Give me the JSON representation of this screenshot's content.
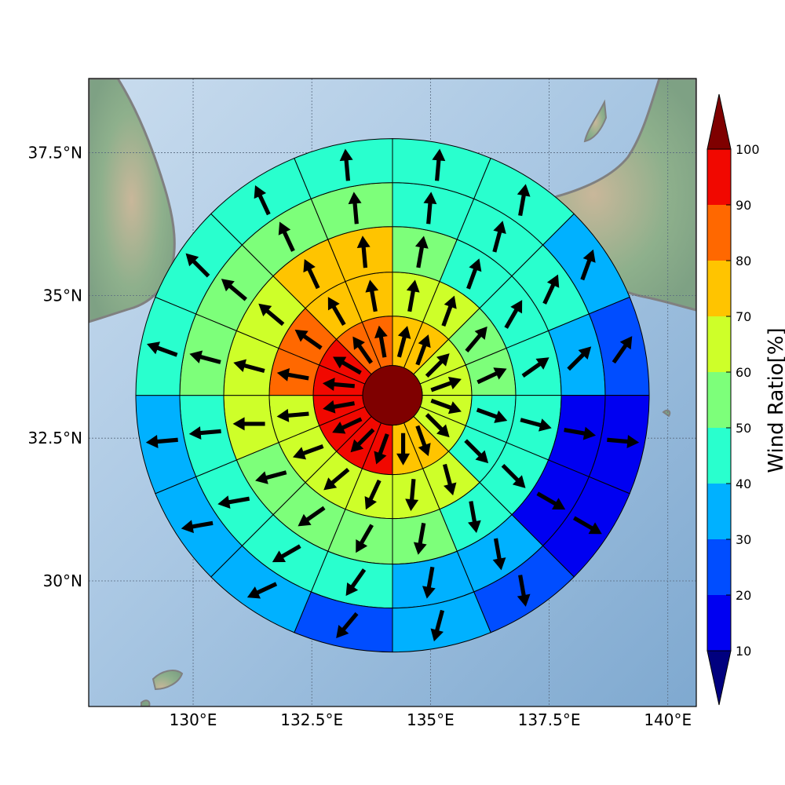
{
  "map": {
    "lon_range": [
      127.8,
      140.6
    ],
    "lat_range": [
      27.8,
      38.8
    ],
    "lon_ticks": [
      {
        "value": 130,
        "label": "130°E"
      },
      {
        "value": 132.5,
        "label": "132.5°E"
      },
      {
        "value": 135,
        "label": "135°E"
      },
      {
        "value": 137.5,
        "label": "137.5°E"
      },
      {
        "value": 140,
        "label": "140°E"
      }
    ],
    "lat_ticks": [
      {
        "value": 30,
        "label": "30°N"
      },
      {
        "value": 32.5,
        "label": "32.5°N"
      },
      {
        "value": 35,
        "label": "35°N"
      },
      {
        "value": 37.5,
        "label": "37.5°N"
      }
    ],
    "gridlines": true,
    "coastline_color": "#808080"
  },
  "chart_data": {
    "type": "heatmap",
    "layout": "polar-sector",
    "center": {
      "lon": 134.2,
      "lat": 33.25
    },
    "sectors_per_ring": 16,
    "rings": [
      {
        "ring": 1,
        "ratios": [
          73,
          73,
          65,
          65,
          65,
          65,
          75,
          75,
          95,
          95,
          95,
          95,
          95,
          95,
          85,
          85
        ]
      },
      {
        "ring": 2,
        "ratios": [
          65,
          65,
          55,
          55,
          45,
          45,
          65,
          65,
          65,
          65,
          65,
          65,
          85,
          85,
          75,
          75
        ]
      },
      {
        "ring": 3,
        "ratios": [
          55,
          45,
          45,
          45,
          45,
          45,
          45,
          55,
          55,
          55,
          55,
          65,
          65,
          65,
          75,
          75
        ]
      },
      {
        "ring": 4,
        "ratios": [
          45,
          45,
          45,
          35,
          15,
          15,
          35,
          35,
          45,
          45,
          45,
          45,
          55,
          55,
          55,
          55
        ]
      },
      {
        "ring": 5,
        "ratios": [
          45,
          45,
          35,
          25,
          15,
          15,
          25,
          35,
          25,
          35,
          35,
          35,
          45,
          45,
          45,
          45
        ]
      }
    ],
    "arrows": [
      [
        75,
        70,
        45,
        20,
        -20,
        -45,
        -70,
        -90,
        -110,
        -135,
        -155,
        -170,
        175,
        150,
        125,
        100
      ],
      [
        80,
        70,
        50,
        25,
        -20,
        -45,
        -75,
        -95,
        -115,
        -140,
        -160,
        -175,
        170,
        145,
        120,
        100
      ],
      [
        80,
        70,
        60,
        35,
        -15,
        -45,
        -80,
        -100,
        -120,
        -145,
        -165,
        -180,
        165,
        140,
        115,
        95
      ],
      [
        85,
        75,
        65,
        45,
        -10,
        -30,
        -80,
        -100,
        -125,
        -150,
        -170,
        -175,
        165,
        140,
        115,
        95
      ],
      [
        85,
        80,
        70,
        55,
        -5,
        -30,
        -80,
        -105,
        -130,
        -155,
        -170,
        -175,
        160,
        135,
        115,
        95
      ]
    ],
    "colorbar": {
      "label": "Wind Ratio[%]",
      "ticks": [
        10,
        20,
        30,
        40,
        50,
        60,
        70,
        80,
        90,
        100
      ],
      "bands": [
        {
          "from": 0,
          "to": 10,
          "color": "#00007f"
        },
        {
          "from": 10,
          "to": 20,
          "color": "#0000f1"
        },
        {
          "from": 20,
          "to": 30,
          "color": "#004dff"
        },
        {
          "from": 30,
          "to": 40,
          "color": "#00b1ff"
        },
        {
          "from": 40,
          "to": 50,
          "color": "#29ffce"
        },
        {
          "from": 50,
          "to": 60,
          "color": "#7dff7a"
        },
        {
          "from": 60,
          "to": 70,
          "color": "#ceff29"
        },
        {
          "from": 70,
          "to": 80,
          "color": "#ffc400"
        },
        {
          "from": 80,
          "to": 90,
          "color": "#ff6800"
        },
        {
          "from": 90,
          "to": 100,
          "color": "#f10800"
        },
        {
          "from": 100,
          "to": 110,
          "color": "#7f0000"
        }
      ]
    }
  }
}
